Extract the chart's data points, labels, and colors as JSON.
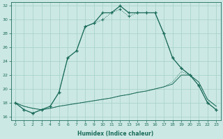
{
  "xlabel": "Humidex (Indice chaleur)",
  "bg_color": "#cce8e4",
  "grid_color": "#aad4cc",
  "line_color": "#1a6b5a",
  "xlim": [
    -0.5,
    23.5
  ],
  "ylim": [
    15.5,
    32.5
  ],
  "yticks": [
    16,
    18,
    20,
    22,
    24,
    26,
    28,
    30,
    32
  ],
  "xticks": [
    0,
    1,
    2,
    3,
    4,
    5,
    6,
    7,
    8,
    9,
    10,
    11,
    12,
    13,
    14,
    15,
    16,
    17,
    18,
    19,
    20,
    21,
    22,
    23
  ],
  "curve1_x": [
    0,
    1,
    2,
    3,
    4,
    5,
    6,
    7,
    8,
    9,
    10,
    11,
    12,
    13,
    14,
    15,
    16,
    17,
    18,
    19,
    20,
    21,
    22,
    23
  ],
  "curve1_y": [
    18,
    17,
    16.5,
    17,
    17.5,
    19.5,
    24.5,
    25.5,
    29,
    29.5,
    31,
    31,
    32,
    31,
    31,
    31,
    31,
    28,
    24.5,
    23,
    22,
    20.5,
    18,
    17
  ],
  "curve2_x": [
    0,
    1,
    2,
    3,
    4,
    5,
    6,
    7,
    8,
    9,
    10,
    11,
    12,
    13,
    14,
    15,
    16,
    17,
    18,
    19,
    20,
    21,
    22,
    23
  ],
  "curve2_y": [
    18,
    17,
    16.5,
    17,
    17.5,
    19.5,
    24.5,
    25.5,
    29,
    29.5,
    30,
    31,
    31.5,
    30.5,
    31,
    31,
    31,
    28,
    24.5,
    23,
    22,
    20.5,
    18,
    17
  ],
  "diag1_x": [
    0,
    1,
    2,
    3,
    4,
    5,
    6,
    7,
    8,
    9,
    10,
    11,
    12,
    13,
    14,
    15,
    16,
    17,
    18,
    19,
    20,
    21,
    22,
    23
  ],
  "diag1_y": [
    18,
    17.5,
    17.2,
    17,
    17.2,
    17.5,
    17.7,
    17.9,
    18.1,
    18.3,
    18.5,
    18.7,
    19.0,
    19.2,
    19.5,
    19.7,
    20.0,
    20.3,
    20.7,
    22,
    22,
    21,
    18.5,
    17.5
  ],
  "diag2_x": [
    0,
    1,
    2,
    3,
    4,
    5,
    6,
    7,
    8,
    9,
    10,
    11,
    12,
    13,
    14,
    15,
    16,
    17,
    18,
    19,
    20,
    21,
    22,
    23
  ],
  "diag2_y": [
    18,
    17.5,
    17.2,
    17,
    17.2,
    17.5,
    17.7,
    17.9,
    18.1,
    18.3,
    18.5,
    18.7,
    19.0,
    19.2,
    19.5,
    19.7,
    20.0,
    20.3,
    21.0,
    22.5,
    22,
    21,
    18.5,
    17.5
  ]
}
